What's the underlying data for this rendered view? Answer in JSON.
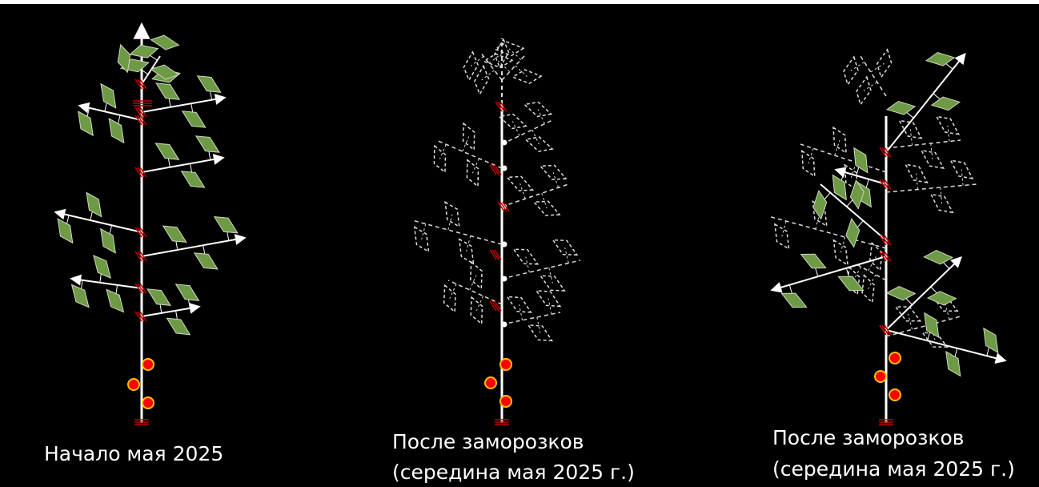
{
  "panels": [
    {
      "caption": [
        "Начало мая 2025"
      ]
    },
    {
      "caption": [
        "После заморозков",
        "(середина мая 2025 г.)"
      ]
    },
    {
      "caption": [
        "После заморозков",
        "(середина мая 2025 г.)"
      ]
    }
  ]
}
